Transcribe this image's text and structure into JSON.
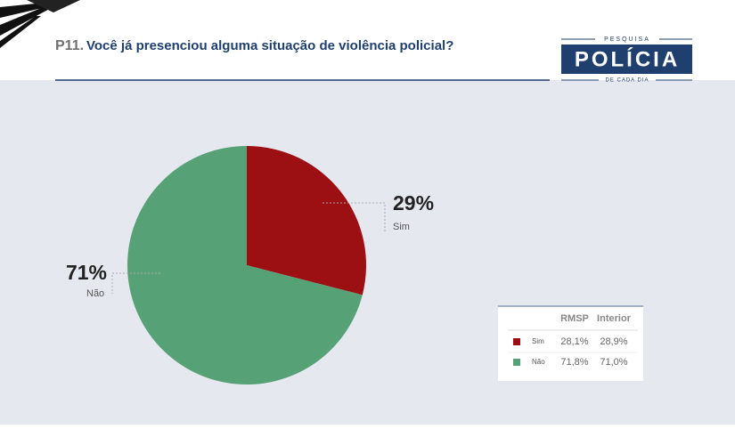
{
  "header": {
    "logo_top": "PESQUISA",
    "logo_main": "POLÍCIA",
    "logo_bottom": "DE CADA DIA"
  },
  "chart_data": {
    "type": "pie",
    "question_number": "P11.",
    "title": "Você já presenciou alguma situação de violência policial?",
    "categories": [
      "Sim",
      "Não"
    ],
    "values": [
      29,
      71
    ],
    "value_labels": [
      "29%",
      "71%"
    ],
    "colors": [
      "#9c0f12",
      "#56a276"
    ]
  },
  "table": {
    "columns": [
      "RMSP",
      "Interior"
    ],
    "rows": [
      [
        "28,1%",
        "28,9%"
      ],
      [
        "71,8%",
        "71,0%"
      ]
    ]
  }
}
